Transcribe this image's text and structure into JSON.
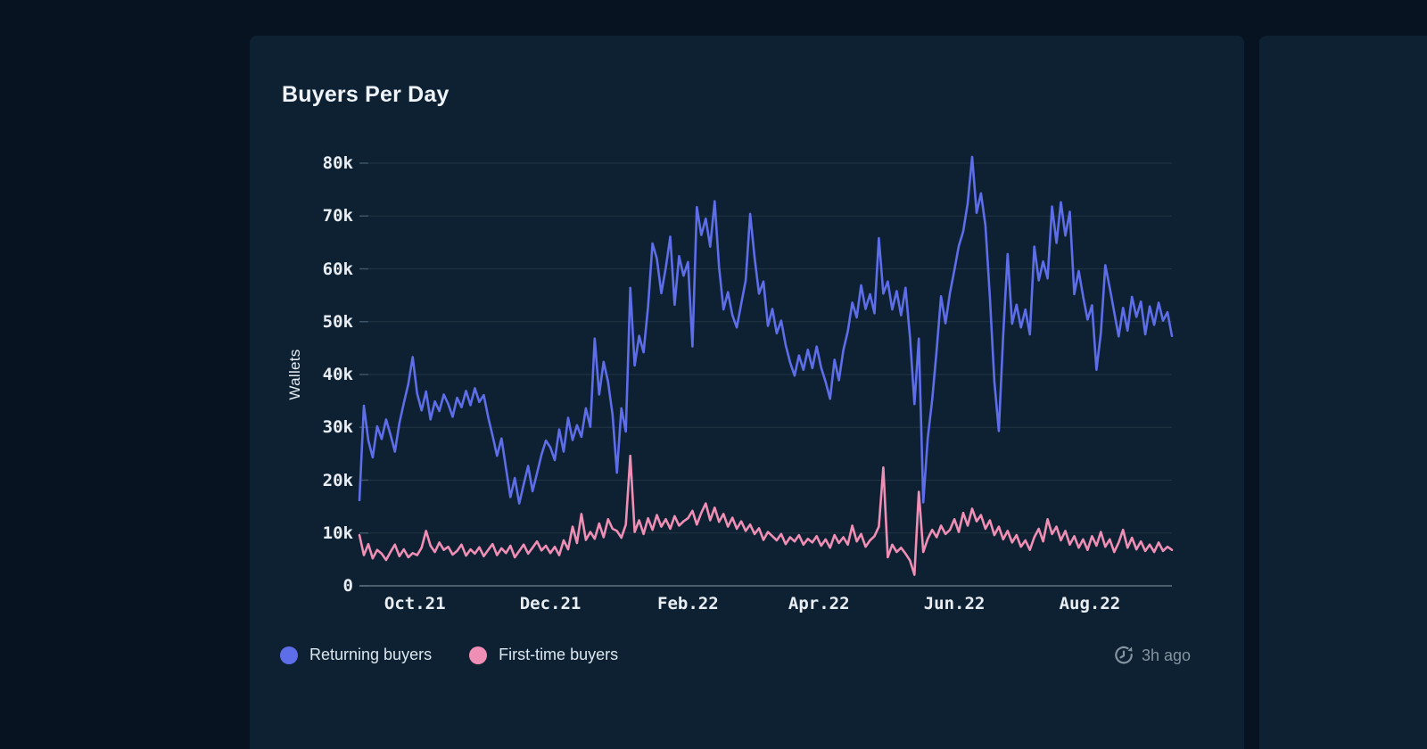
{
  "card": {
    "title": "Buyers Per Day",
    "updated": "3h ago"
  },
  "legend": [
    {
      "label": "Returning buyers",
      "color": "#5e6de8"
    },
    {
      "label": "First-time buyers",
      "color": "#f08fb5"
    }
  ],
  "colors": {
    "page_bg": "#071320",
    "card_bg": "#0d2132",
    "grid": "rgba(224,238,248,0.10)",
    "axis_line": "#5f7282",
    "tick_dash": "#41566a",
    "title_text": "#eef4f9",
    "tick_text": "#e8eef4",
    "legend_text": "#dde7ef",
    "muted_text": "#8494a1",
    "returning": "#5e6de8",
    "first_time": "#f08fb5"
  },
  "chart_data": {
    "type": "line",
    "title": "Buyers Per Day",
    "xlabel": "",
    "ylabel": "Wallets",
    "units": "thousands of wallets per day",
    "x_start": "Sep 2021",
    "x_end": "Sep 2022",
    "sample_interval_days": 2,
    "total_span_days": 366,
    "grid": true,
    "legend_position": "bottom",
    "ylim_k": [
      0,
      80
    ],
    "y_ticks": [
      {
        "label": "0",
        "value_k": 0
      },
      {
        "label": "10k",
        "value_k": 10
      },
      {
        "label": "20k",
        "value_k": 20
      },
      {
        "label": "30k",
        "value_k": 30
      },
      {
        "label": "40k",
        "value_k": 40
      },
      {
        "label": "50k",
        "value_k": 50
      },
      {
        "label": "60k",
        "value_k": 60
      },
      {
        "label": "70k",
        "value_k": 70
      },
      {
        "label": "80k",
        "value_k": 80
      }
    ],
    "x_ticks": [
      {
        "label": "Oct.21",
        "day": 25
      },
      {
        "label": "Dec.21",
        "day": 86
      },
      {
        "label": "Feb.22",
        "day": 148
      },
      {
        "label": "Apr.22",
        "day": 207
      },
      {
        "label": "Jun.22",
        "day": 268
      },
      {
        "label": "Aug.22",
        "day": 329
      }
    ],
    "series": [
      {
        "name": "Returning buyers",
        "color": "#5e6de8",
        "values_k": [
          16.2,
          34.1,
          27.5,
          24.3,
          30.2,
          27.8,
          31.5,
          28.6,
          25.4,
          30.8,
          34.6,
          38.2,
          43.3,
          36.4,
          33.2,
          36.8,
          31.5,
          34.9,
          33.1,
          36.2,
          34.4,
          32.0,
          35.6,
          33.8,
          36.9,
          34.2,
          37.4,
          34.8,
          36.1,
          31.9,
          28.4,
          24.6,
          27.9,
          22.3,
          16.8,
          20.4,
          15.6,
          19.2,
          22.7,
          17.9,
          21.3,
          24.8,
          27.5,
          26.2,
          23.8,
          29.6,
          25.4,
          31.8,
          27.6,
          30.4,
          28.2,
          33.6,
          30.1,
          46.8,
          36.2,
          42.4,
          38.6,
          32.4,
          21.4,
          33.6,
          29.2,
          56.4,
          41.7,
          47.3,
          44.2,
          52.8,
          64.8,
          61.9,
          55.4,
          60.2,
          66.1,
          53.2,
          62.4,
          58.7,
          61.3,
          45.3,
          71.7,
          66.4,
          69.5,
          64.2,
          72.8,
          60.4,
          52.3,
          55.6,
          51.2,
          48.9,
          53.4,
          57.8,
          70.4,
          62.1,
          55.3,
          57.6,
          49.2,
          52.4,
          47.8,
          50.2,
          45.6,
          42.3,
          39.8,
          43.6,
          40.9,
          44.7,
          41.2,
          45.3,
          41.3,
          38.6,
          35.4,
          42.8,
          38.9,
          44.6,
          48.2,
          53.6,
          50.8,
          56.9,
          52.4,
          55.2,
          51.6,
          65.8,
          55.3,
          57.6,
          52.3,
          55.8,
          51.2,
          56.4,
          47.1,
          34.4,
          46.8,
          15.8,
          27.9,
          35.2,
          44.6,
          54.8,
          49.7,
          55.4,
          59.8,
          64.3,
          67.1,
          72.4,
          81.2,
          70.6,
          74.3,
          68.2,
          54.6,
          38.7,
          29.3,
          47.4,
          62.8,
          49.6,
          53.2,
          48.9,
          52.3,
          47.6,
          64.2,
          57.8,
          61.4,
          58.2,
          71.8,
          64.9,
          72.6,
          66.3,
          70.8,
          55.2,
          59.6,
          54.8,
          50.4,
          53.1,
          40.9,
          47.8,
          60.7,
          56.4,
          51.8,
          47.2,
          52.6,
          48.3,
          54.7,
          50.9,
          53.8,
          47.6,
          52.9,
          49.4,
          53.6,
          50.2,
          51.8,
          47.3
        ]
      },
      {
        "name": "First-time buyers",
        "color": "#f08fb5",
        "values_k": [
          9.6,
          5.8,
          7.9,
          5.2,
          6.8,
          6.1,
          4.9,
          6.4,
          7.8,
          5.6,
          6.9,
          5.4,
          6.2,
          5.8,
          7.2,
          10.4,
          7.6,
          6.4,
          8.2,
          6.8,
          7.4,
          5.9,
          6.6,
          7.8,
          5.7,
          6.9,
          6.1,
          7.3,
          5.6,
          6.8,
          7.9,
          5.8,
          7.1,
          6.2,
          7.6,
          5.4,
          6.6,
          7.8,
          6.1,
          7.2,
          8.4,
          6.7,
          7.6,
          6.2,
          7.4,
          5.8,
          8.6,
          6.9,
          11.2,
          8.1,
          13.6,
          8.7,
          10.2,
          8.9,
          11.8,
          9.2,
          12.6,
          10.8,
          10.4,
          9.1,
          11.6,
          24.6,
          10.2,
          12.4,
          9.8,
          12.8,
          10.6,
          13.4,
          11.2,
          12.6,
          10.8,
          13.2,
          11.4,
          12.2,
          12.8,
          14.2,
          11.6,
          13.8,
          15.6,
          12.4,
          14.8,
          12.1,
          13.6,
          11.2,
          12.9,
          10.8,
          12.2,
          10.4,
          11.6,
          9.8,
          10.9,
          8.7,
          10.2,
          9.4,
          8.6,
          9.8,
          7.9,
          9.2,
          8.4,
          9.6,
          7.8,
          8.9,
          8.2,
          9.4,
          7.6,
          8.8,
          7.2,
          9.6,
          8.1,
          9.2,
          7.8,
          11.4,
          8.4,
          9.8,
          7.4,
          8.6,
          9.4,
          11.2,
          22.4,
          5.4,
          7.8,
          6.4,
          7.2,
          6.1,
          4.8,
          2.1,
          17.8,
          6.4,
          8.9,
          10.6,
          9.2,
          11.4,
          9.8,
          10.6,
          12.6,
          10.2,
          13.8,
          11.4,
          14.6,
          12.2,
          13.4,
          10.8,
          12.4,
          9.6,
          11.2,
          8.8,
          10.4,
          8.2,
          9.6,
          7.4,
          8.6,
          6.8,
          9.2,
          10.8,
          8.4,
          12.6,
          9.8,
          11.2,
          8.6,
          10.4,
          7.8,
          9.4,
          7.2,
          8.8,
          6.8,
          9.4,
          7.6,
          10.2,
          7.4,
          8.8,
          6.4,
          8.2,
          10.6,
          7.2,
          9.1,
          6.9,
          8.4,
          6.6,
          7.8,
          6.4,
          8.2,
          6.6,
          7.4,
          6.8
        ]
      }
    ]
  }
}
